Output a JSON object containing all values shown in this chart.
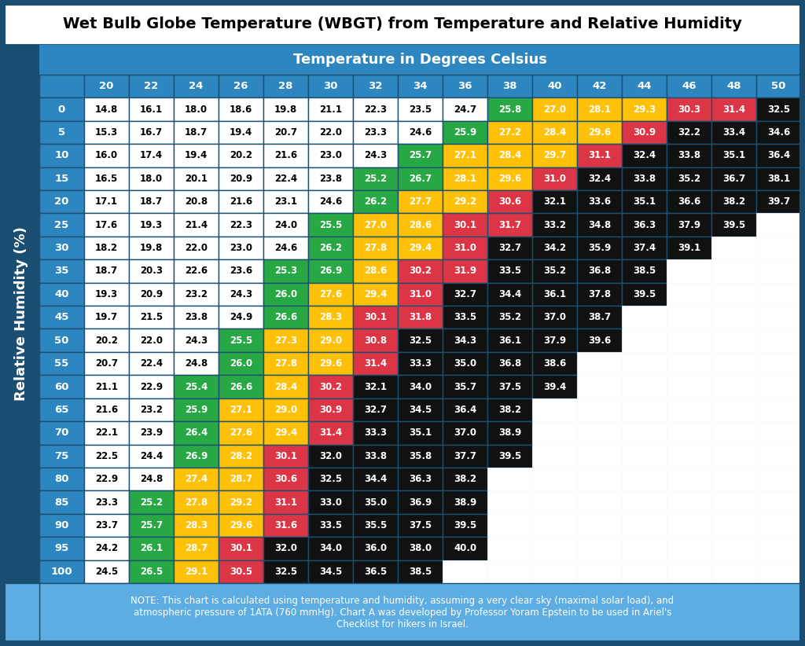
{
  "title": "Wet Bulb Globe Temperature (WBGT) from Temperature and Relative Humidity",
  "col_header_label": "Temperature in Degrees Celsius",
  "row_header_label": "Relative Humidity (%)",
  "col_headers": [
    20,
    22,
    24,
    26,
    28,
    30,
    32,
    34,
    36,
    38,
    40,
    42,
    44,
    46,
    48,
    50
  ],
  "row_headers": [
    0,
    5,
    10,
    15,
    20,
    25,
    30,
    35,
    40,
    45,
    50,
    55,
    60,
    65,
    70,
    75,
    80,
    85,
    90,
    95,
    100
  ],
  "table_data": [
    [
      14.8,
      16.1,
      18.0,
      18.6,
      19.8,
      21.1,
      22.3,
      23.5,
      24.7,
      25.8,
      27.0,
      28.1,
      29.3,
      30.3,
      31.4,
      32.5
    ],
    [
      15.3,
      16.7,
      18.7,
      19.4,
      20.7,
      22.0,
      23.3,
      24.6,
      25.9,
      27.2,
      28.4,
      29.6,
      30.9,
      32.2,
      33.4,
      34.6
    ],
    [
      16.0,
      17.4,
      19.4,
      20.2,
      21.6,
      23.0,
      24.3,
      25.7,
      27.1,
      28.4,
      29.7,
      31.1,
      32.4,
      33.8,
      35.1,
      36.4
    ],
    [
      16.5,
      18.0,
      20.1,
      20.9,
      22.4,
      23.8,
      25.2,
      26.7,
      28.1,
      29.6,
      31.0,
      32.4,
      33.8,
      35.2,
      36.7,
      38.1
    ],
    [
      17.1,
      18.7,
      20.8,
      21.6,
      23.1,
      24.6,
      26.2,
      27.7,
      29.2,
      30.6,
      32.1,
      33.6,
      35.1,
      36.6,
      38.2,
      39.7
    ],
    [
      17.6,
      19.3,
      21.4,
      22.3,
      24.0,
      25.5,
      27.0,
      28.6,
      30.1,
      31.7,
      33.2,
      34.8,
      36.3,
      37.9,
      39.5,
      null
    ],
    [
      18.2,
      19.8,
      22.0,
      23.0,
      24.6,
      26.2,
      27.8,
      29.4,
      31.0,
      32.7,
      34.2,
      35.9,
      37.4,
      39.1,
      null,
      null
    ],
    [
      18.7,
      20.3,
      22.6,
      23.6,
      25.3,
      26.9,
      28.6,
      30.2,
      31.9,
      33.5,
      35.2,
      36.8,
      38.5,
      null,
      null,
      null
    ],
    [
      19.3,
      20.9,
      23.2,
      24.3,
      26.0,
      27.6,
      29.4,
      31.0,
      32.7,
      34.4,
      36.1,
      37.8,
      39.5,
      null,
      null,
      null
    ],
    [
      19.7,
      21.5,
      23.8,
      24.9,
      26.6,
      28.3,
      30.1,
      31.8,
      33.5,
      35.2,
      37.0,
      38.7,
      null,
      null,
      null,
      null
    ],
    [
      20.2,
      22.0,
      24.3,
      25.5,
      27.3,
      29.0,
      30.8,
      32.5,
      34.3,
      36.1,
      37.9,
      39.6,
      null,
      null,
      null,
      null
    ],
    [
      20.7,
      22.4,
      24.8,
      26.0,
      27.8,
      29.6,
      31.4,
      33.3,
      35.0,
      36.8,
      38.6,
      null,
      null,
      null,
      null,
      null
    ],
    [
      21.1,
      22.9,
      25.4,
      26.6,
      28.4,
      30.2,
      32.1,
      34.0,
      35.7,
      37.5,
      39.4,
      null,
      null,
      null,
      null,
      null
    ],
    [
      21.6,
      23.2,
      25.9,
      27.1,
      29.0,
      30.9,
      32.7,
      34.5,
      36.4,
      38.2,
      null,
      null,
      null,
      null,
      null,
      null
    ],
    [
      22.1,
      23.9,
      26.4,
      27.6,
      29.4,
      31.4,
      33.3,
      35.1,
      37.0,
      38.9,
      null,
      null,
      null,
      null,
      null,
      null
    ],
    [
      22.5,
      24.4,
      26.9,
      28.2,
      30.1,
      32.0,
      33.8,
      35.8,
      37.7,
      39.5,
      null,
      null,
      null,
      null,
      null,
      null
    ],
    [
      22.9,
      24.8,
      27.4,
      28.7,
      30.6,
      32.5,
      34.4,
      36.3,
      38.2,
      null,
      null,
      null,
      null,
      null,
      null,
      null
    ],
    [
      23.3,
      25.2,
      27.8,
      29.2,
      31.1,
      33.0,
      35.0,
      36.9,
      38.9,
      null,
      null,
      null,
      null,
      null,
      null,
      null
    ],
    [
      23.7,
      25.7,
      28.3,
      29.6,
      31.6,
      33.5,
      35.5,
      37.5,
      39.5,
      null,
      null,
      null,
      null,
      null,
      null,
      null
    ],
    [
      24.2,
      26.1,
      28.7,
      30.1,
      32.0,
      34.0,
      36.0,
      38.0,
      40.0,
      null,
      null,
      null,
      null,
      null,
      null,
      null
    ],
    [
      24.5,
      26.5,
      29.1,
      30.5,
      32.5,
      34.5,
      36.5,
      38.5,
      null,
      null,
      null,
      null,
      null,
      null,
      null,
      null
    ]
  ],
  "note": "NOTE: This chart is calculated using temperature and humidity, assuming a very clear sky (maximal solar load), and\natmospheric pressure of 1ATA (760 mmHg). Chart A was developed by Professor Yoram Epstein to be used in Ariel's\nChecklist for hikers in Israel.",
  "bg_color": "#1b4f72",
  "sidebar_color": "#1b4f72",
  "col_header_bg": "#2e86c1",
  "row_header_bg": "#2e86c1",
  "white_bg": "#ffffff",
  "black_cell_bg": "#111111",
  "green_color": "#28a745",
  "yellow_color": "#ffc107",
  "red_color": "#dc3545",
  "title_bg": "#ffffff",
  "note_bg": "#5dade2",
  "note_text_color": "#ffffff",
  "title_text_color": "#000000",
  "white_threshold": 25.0,
  "green_threshold": 27.0,
  "yellow_threshold": 30.0,
  "red_threshold": 32.0
}
